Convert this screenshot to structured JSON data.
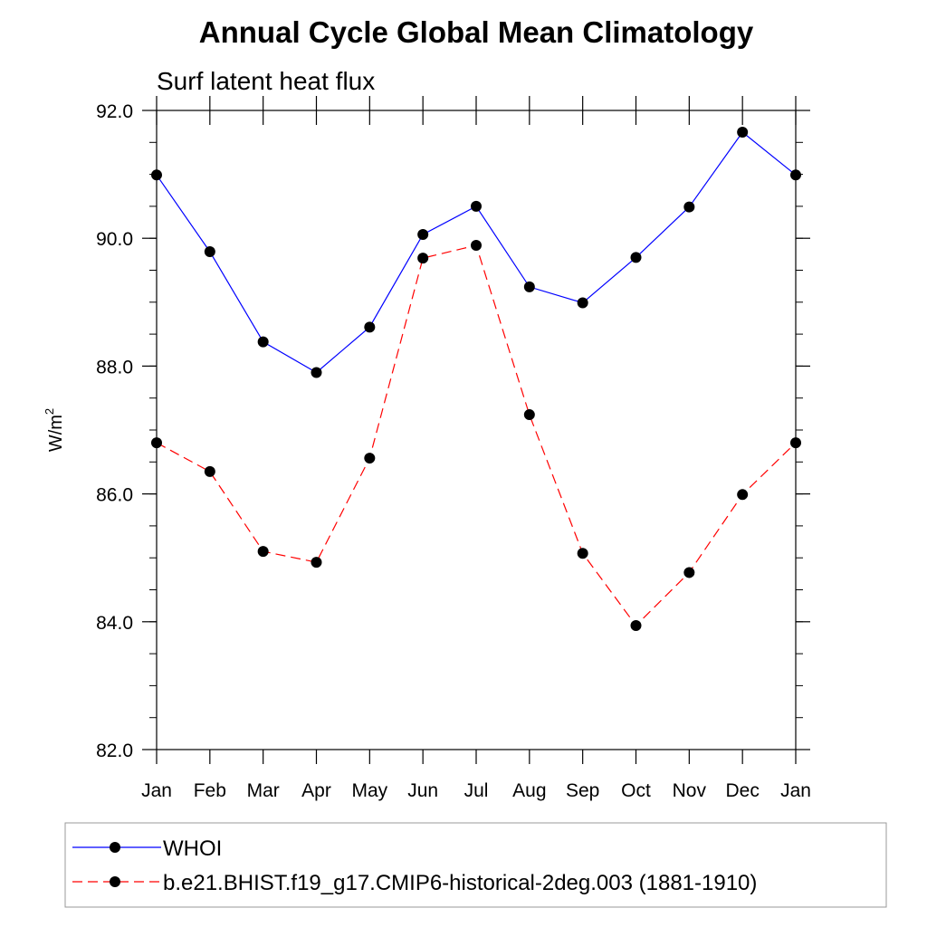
{
  "chart_data": {
    "type": "line",
    "title": "Annual Cycle Global Mean Climatology",
    "subtitle": "Surf latent heat flux",
    "ylabel_base": "W/m",
    "ylabel_sup": "2",
    "xlabel": "",
    "categories": [
      "Jan",
      "Feb",
      "Mar",
      "Apr",
      "May",
      "Jun",
      "Jul",
      "Aug",
      "Sep",
      "Oct",
      "Nov",
      "Dec",
      "Jan"
    ],
    "ylim": [
      82.0,
      92.0
    ],
    "yticks": [
      "82.0",
      "84.0",
      "86.0",
      "88.0",
      "90.0",
      "92.0"
    ],
    "y_tick_values": [
      82,
      84,
      86,
      88,
      90,
      92
    ],
    "y_minor_step": 0.5,
    "grid": false,
    "legend_position": "bottom",
    "series": [
      {
        "name": "WHOI",
        "color": "#0000ff",
        "dash": "solid",
        "marker": "filled-circle",
        "values": [
          90.99,
          89.79,
          88.38,
          87.9,
          88.61,
          90.06,
          90.5,
          89.24,
          88.99,
          89.7,
          90.49,
          91.66,
          90.99
        ]
      },
      {
        "name": "b.e21.BHIST.f19_g17.CMIP6-historical-2deg.003 (1881-1910)",
        "color": "#ff0000",
        "dash": "dashed",
        "marker": "filled-circle",
        "values": [
          86.8,
          86.35,
          85.1,
          84.93,
          86.56,
          89.69,
          89.89,
          87.24,
          85.07,
          83.94,
          84.77,
          85.99,
          86.8
        ]
      }
    ]
  }
}
